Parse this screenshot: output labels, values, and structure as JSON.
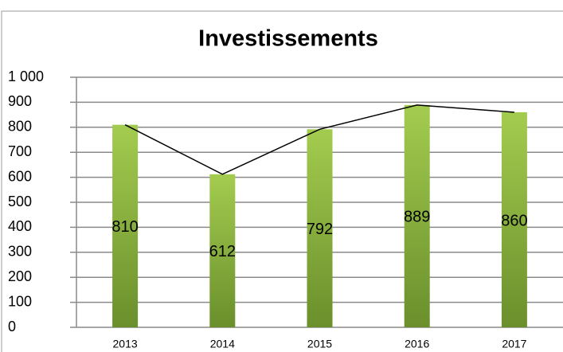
{
  "chart_data": {
    "type": "bar",
    "title": "Investissements",
    "categories": [
      "2013",
      "2014",
      "2015",
      "2016",
      "2017"
    ],
    "series": [
      {
        "type": "bar",
        "color": "#8db83f",
        "values": [
          810,
          612,
          792,
          889,
          860
        ]
      },
      {
        "type": "line",
        "color": "#000000",
        "values": [
          810,
          612,
          792,
          889,
          860
        ]
      }
    ],
    "ylim": [
      0,
      1000
    ],
    "yticks": [
      0,
      100,
      200,
      300,
      400,
      500,
      600,
      700,
      800,
      900,
      {
        "value": 1000,
        "label": "1 000"
      }
    ],
    "grid": true
  }
}
